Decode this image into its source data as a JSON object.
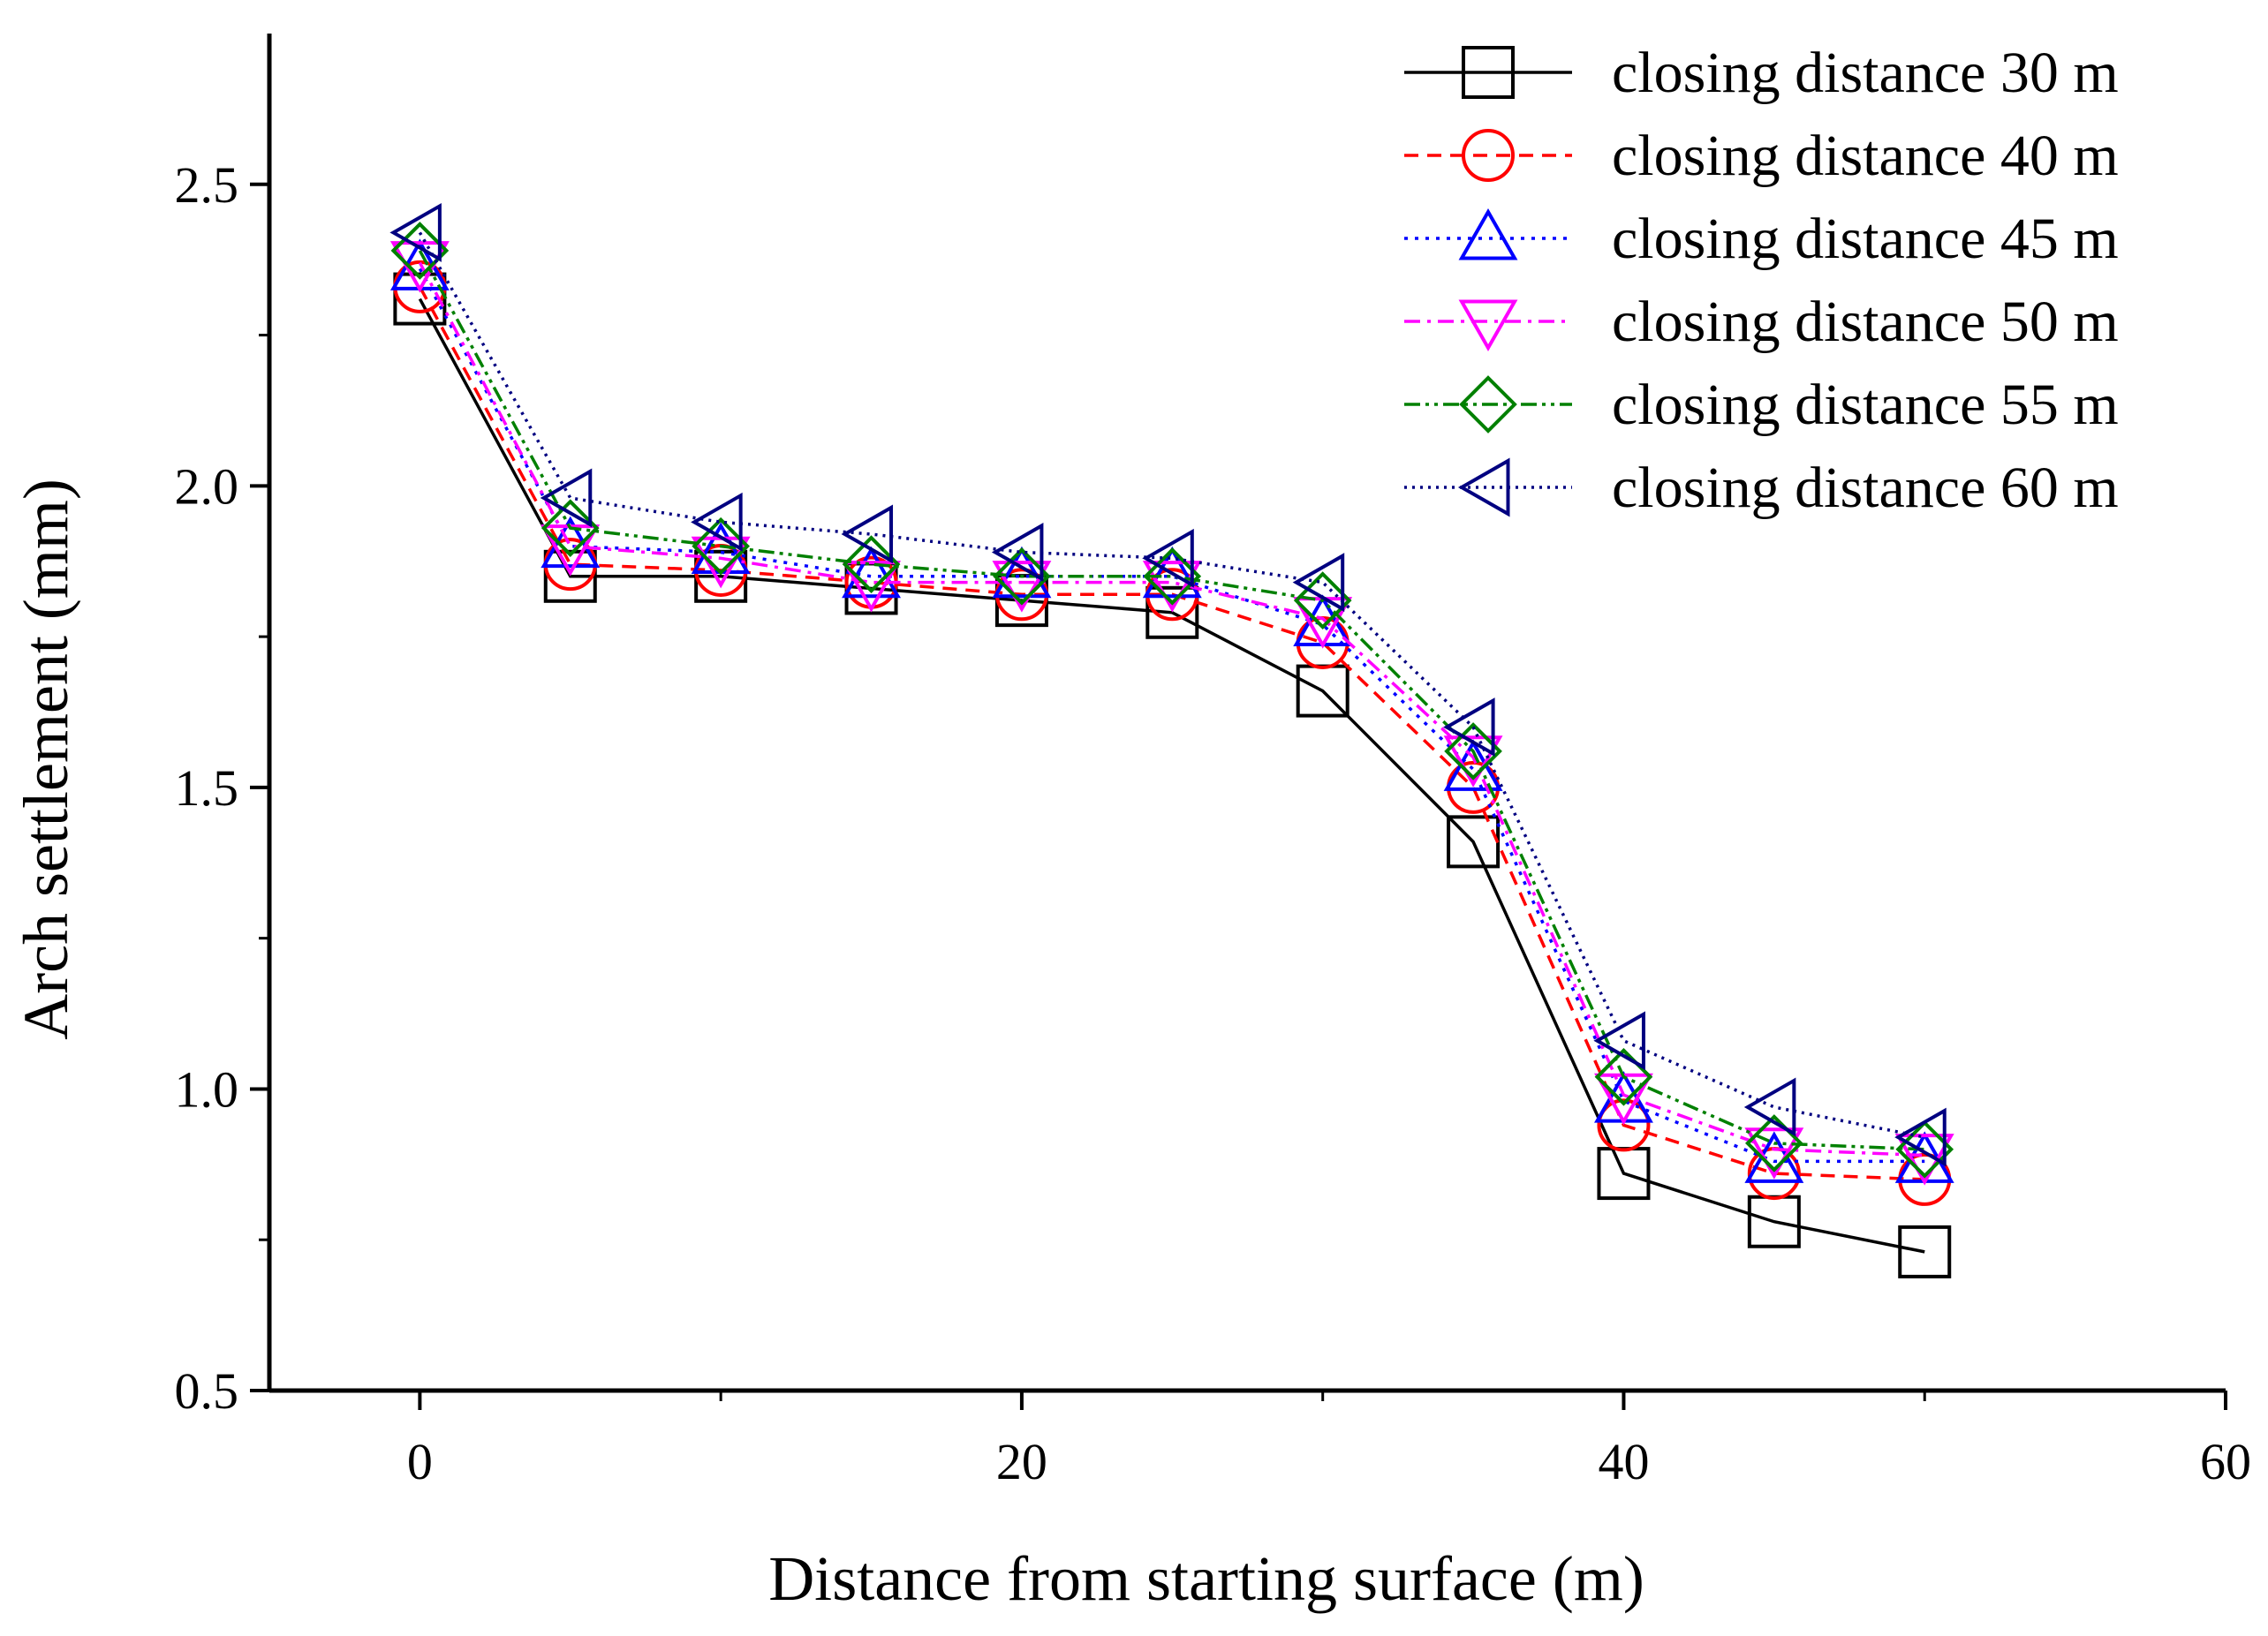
{
  "chart_data": {
    "type": "line",
    "title": "",
    "xlabel": "Distance from starting surface (m)",
    "ylabel": "Arch settlement (mm)",
    "xlim": [
      -5,
      60
    ],
    "ylim": [
      0.5,
      2.75
    ],
    "xticks": [
      0,
      20,
      40,
      60
    ],
    "yticks": [
      0.5,
      1.0,
      1.5,
      2.0,
      2.5
    ],
    "xtick_labels": [
      "0",
      "20",
      "40",
      "60"
    ],
    "ytick_labels": [
      "0.5",
      "1.0",
      "1.5",
      "2.0",
      "2.5"
    ],
    "legend_position": "top-right",
    "x": [
      0,
      5,
      10,
      15,
      20,
      25,
      30,
      35,
      40,
      45,
      50
    ],
    "series": [
      {
        "name": "closing distance 30 m",
        "color": "#000000",
        "marker": "square",
        "dash": "solid",
        "values": [
          2.31,
          1.85,
          1.85,
          1.83,
          1.81,
          1.79,
          1.66,
          1.41,
          0.86,
          0.78,
          0.73
        ]
      },
      {
        "name": "closing distance 40 m",
        "color": "#ff0000",
        "marker": "circle",
        "dash": "dash",
        "values": [
          2.33,
          1.87,
          1.86,
          1.84,
          1.82,
          1.82,
          1.74,
          1.5,
          0.94,
          0.86,
          0.85
        ]
      },
      {
        "name": "closing distance 45 m",
        "color": "#0000ff",
        "marker": "triangle-up",
        "dash": "dot",
        "values": [
          2.36,
          1.9,
          1.89,
          1.85,
          1.85,
          1.85,
          1.77,
          1.53,
          0.98,
          0.88,
          0.88
        ]
      },
      {
        "name": "closing distance 50 m",
        "color": "#ff00ff",
        "marker": "triangle-down",
        "dash": "dashdot",
        "values": [
          2.37,
          1.9,
          1.88,
          1.84,
          1.84,
          1.84,
          1.78,
          1.55,
          0.99,
          0.9,
          0.89
        ]
      },
      {
        "name": "closing distance 55 m",
        "color": "#008000",
        "marker": "diamond",
        "dash": "dashdotdot",
        "values": [
          2.39,
          1.93,
          1.9,
          1.87,
          1.85,
          1.85,
          1.81,
          1.56,
          1.02,
          0.91,
          0.9
        ]
      },
      {
        "name": "closing distance 60 m",
        "color": "#000080",
        "marker": "triangle-left",
        "dash": "shortdot",
        "values": [
          2.42,
          1.98,
          1.94,
          1.92,
          1.89,
          1.88,
          1.84,
          1.6,
          1.08,
          0.97,
          0.92
        ]
      }
    ]
  }
}
